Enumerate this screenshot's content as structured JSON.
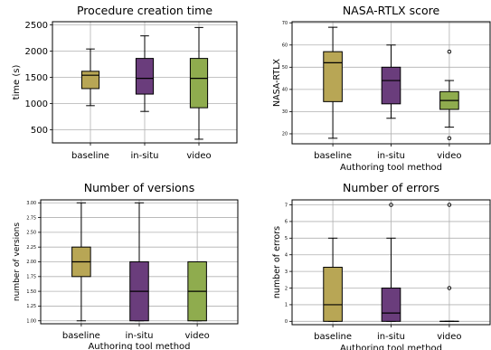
{
  "colors": {
    "baseline": "#b8a655",
    "in-situ": "#6a3d7c",
    "video": "#8fac4e",
    "grid": "#b0b0b0",
    "axis": "#000000",
    "median": "#000000"
  },
  "chart_data": [
    {
      "type": "box",
      "title": "Procedure creation time",
      "xlabel": "",
      "ylabel": "time (s)",
      "categories": [
        "baseline",
        "in-situ",
        "video"
      ],
      "ylim": [
        250,
        2560
      ],
      "yticks": [
        500,
        1000,
        1500,
        2000,
        2500
      ],
      "ytick_labels": [
        "500",
        "1000",
        "1500",
        "2000",
        "2500"
      ],
      "grid": true,
      "boxes": [
        {
          "category": "baseline",
          "whislo": 960,
          "q1": 1285,
          "med": 1540,
          "q3": 1615,
          "whishi": 2040,
          "fliers": []
        },
        {
          "category": "in-situ",
          "whislo": 850,
          "q1": 1180,
          "med": 1480,
          "q3": 1860,
          "whishi": 2290,
          "fliers": []
        },
        {
          "category": "video",
          "whislo": 320,
          "q1": 920,
          "med": 1480,
          "q3": 1860,
          "whishi": 2450,
          "fliers": []
        }
      ]
    },
    {
      "type": "box",
      "title": "NASA-RTLX score",
      "xlabel": "Authoring tool method",
      "ylabel": "NASA-RTLX",
      "categories": [
        "baseline",
        "in-situ",
        "video"
      ],
      "ylim": [
        15.5,
        70.5
      ],
      "yticks": [
        20,
        30,
        40,
        50,
        60,
        70
      ],
      "ytick_labels": [
        "20",
        "30",
        "40",
        "50",
        "60",
        "70"
      ],
      "grid": true,
      "boxes": [
        {
          "category": "baseline",
          "whislo": 18,
          "q1": 34.5,
          "med": 52,
          "q3": 57,
          "whishi": 68,
          "fliers": []
        },
        {
          "category": "in-situ",
          "whislo": 27,
          "q1": 33.5,
          "med": 44,
          "q3": 50,
          "whishi": 60,
          "fliers": []
        },
        {
          "category": "video",
          "whislo": 23,
          "q1": 31,
          "med": 35,
          "q3": 39,
          "whishi": 44,
          "fliers": [
            57,
            18
          ]
        }
      ]
    },
    {
      "type": "box",
      "title": "Number of versions",
      "xlabel": "Authoring tool method",
      "ylabel": "number of versions",
      "categories": [
        "baseline",
        "in-situ",
        "video"
      ],
      "ylim": [
        0.95,
        3.05
      ],
      "yticks": [
        1.0,
        1.25,
        1.5,
        1.75,
        2.0,
        2.25,
        2.5,
        2.75,
        3.0
      ],
      "ytick_labels": [
        "1.00",
        "1.25",
        "1.50",
        "1.75",
        "2.00",
        "2.25",
        "2.50",
        "2.75",
        "3.00"
      ],
      "grid": true,
      "boxes": [
        {
          "category": "baseline",
          "whislo": 1,
          "q1": 1.75,
          "med": 2,
          "q3": 2.25,
          "whishi": 3,
          "fliers": []
        },
        {
          "category": "in-situ",
          "whislo": 1,
          "q1": 1,
          "med": 1.5,
          "q3": 2,
          "whishi": 3,
          "fliers": []
        },
        {
          "category": "video",
          "whislo": 1,
          "q1": 1,
          "med": 1.5,
          "q3": 2,
          "whishi": 2,
          "fliers": []
        }
      ]
    },
    {
      "type": "box",
      "title": "Number of errors",
      "xlabel": "Authoring tool method",
      "ylabel": "number of errors",
      "categories": [
        "baseline",
        "in-situ",
        "video"
      ],
      "ylim": [
        -0.2,
        7.3
      ],
      "yticks": [
        0,
        1,
        2,
        3,
        4,
        5,
        6,
        7
      ],
      "ytick_labels": [
        "0",
        "1",
        "2",
        "3",
        "4",
        "5",
        "6",
        "7"
      ],
      "grid": true,
      "boxes": [
        {
          "category": "baseline",
          "whislo": 0,
          "q1": 0,
          "med": 1,
          "q3": 3.25,
          "whishi": 5,
          "fliers": []
        },
        {
          "category": "in-situ",
          "whislo": 0,
          "q1": 0,
          "med": 0.5,
          "q3": 2,
          "whishi": 5,
          "fliers": [
            7
          ]
        },
        {
          "category": "video",
          "whislo": 0,
          "q1": 0,
          "med": 0,
          "q3": 0,
          "whishi": 0,
          "fliers": [
            7,
            2
          ]
        }
      ]
    }
  ]
}
